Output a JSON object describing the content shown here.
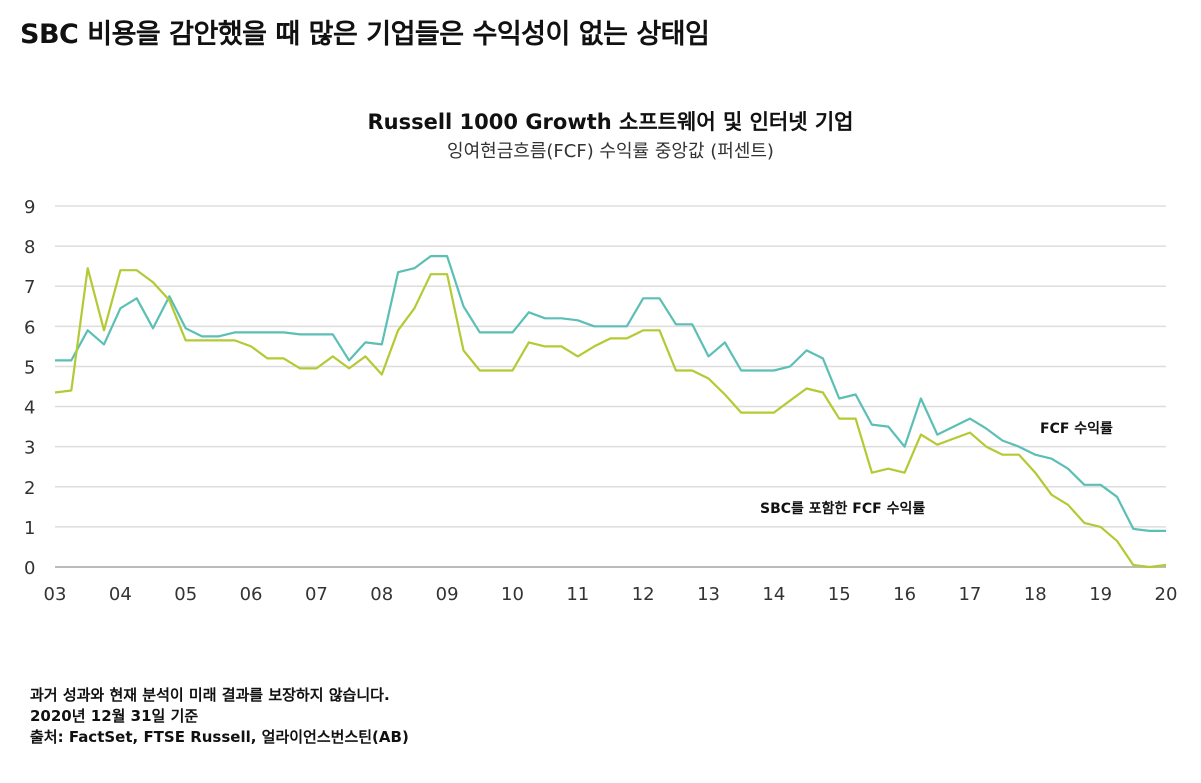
{
  "heading": "SBC 비용을 감안했을 때 많은 기업들은 수익성이 없는 상태임",
  "chart_data": {
    "type": "line",
    "title": "Russell 1000 Growth 소프트웨어 및 인터넷 기업",
    "subtitle": "잉여현금흐름(FCF) 수익률 중앙값 (퍼센트)",
    "x_ticks": [
      "03",
      "04",
      "05",
      "06",
      "07",
      "08",
      "09",
      "10",
      "11",
      "12",
      "13",
      "14",
      "15",
      "16",
      "17",
      "18",
      "19",
      "20"
    ],
    "x_range": [
      2003,
      2020
    ],
    "y_ticks": [
      0,
      1,
      2,
      3,
      4,
      5,
      6,
      7,
      8,
      9
    ],
    "ylim": [
      0,
      9
    ],
    "grid": "horizontal",
    "frequency": "quarterly",
    "series": [
      {
        "name": "FCF 수익률",
        "color": "#5bbfb5",
        "values": [
          5.15,
          5.15,
          5.9,
          5.55,
          6.45,
          6.7,
          5.95,
          6.75,
          5.95,
          5.75,
          5.75,
          5.85,
          5.85,
          5.85,
          5.85,
          5.8,
          5.8,
          5.8,
          5.15,
          5.6,
          5.55,
          7.35,
          7.45,
          7.75,
          7.75,
          6.5,
          5.85,
          5.85,
          5.85,
          6.35,
          6.2,
          6.2,
          6.15,
          6.0,
          6.0,
          6.0,
          6.7,
          6.7,
          6.05,
          6.05,
          5.25,
          5.6,
          4.9,
          4.9,
          4.9,
          5.0,
          5.4,
          5.2,
          4.2,
          4.3,
          3.55,
          3.5,
          3.0,
          4.2,
          3.3,
          3.5,
          3.7,
          3.45,
          3.15,
          3.0,
          2.8,
          2.7,
          2.45,
          2.05,
          2.05,
          1.75,
          0.95,
          0.9,
          0.9
        ]
      },
      {
        "name": "SBC를 포함한 FCF 수익률",
        "color": "#b5c934",
        "values": [
          4.35,
          4.4,
          7.45,
          5.9,
          7.4,
          7.4,
          7.1,
          6.65,
          5.65,
          5.65,
          5.65,
          5.65,
          5.5,
          5.2,
          5.2,
          4.95,
          4.95,
          5.25,
          4.95,
          5.25,
          4.8,
          5.9,
          6.45,
          7.3,
          7.3,
          5.4,
          4.9,
          4.9,
          4.9,
          5.6,
          5.5,
          5.5,
          5.25,
          5.5,
          5.7,
          5.7,
          5.9,
          5.9,
          4.9,
          4.9,
          4.7,
          4.3,
          3.85,
          3.85,
          3.85,
          4.15,
          4.45,
          4.35,
          3.7,
          3.7,
          2.35,
          2.45,
          2.35,
          3.3,
          3.05,
          3.2,
          3.35,
          3.0,
          2.8,
          2.8,
          2.35,
          1.8,
          1.55,
          1.1,
          1.0,
          0.65,
          0.05,
          0.0,
          0.05
        ]
      }
    ]
  },
  "notes": [
    "과거 성과와 현재 분석이 미래 결과를 보장하지 않습니다.",
    "2020년 12월 31일 기준",
    "출처: FactSet, FTSE Russell, 얼라이언스번스틴(AB)"
  ]
}
